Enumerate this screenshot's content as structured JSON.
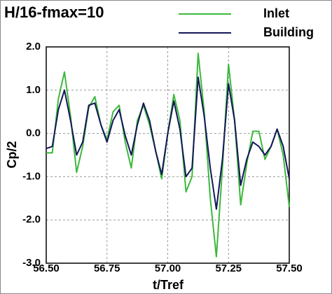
{
  "chart_data": {
    "type": "line",
    "title": "H/16-fmax=10",
    "x_label": "t/Tref",
    "y_label": "Cp/2",
    "x": [
      56.5,
      56.525,
      56.55,
      56.575,
      56.6,
      56.625,
      56.65,
      56.675,
      56.7,
      56.725,
      56.75,
      56.775,
      56.8,
      56.825,
      56.85,
      56.875,
      56.9,
      56.925,
      56.95,
      56.975,
      57.0,
      57.025,
      57.05,
      57.075,
      57.1,
      57.125,
      57.15,
      57.175,
      57.2,
      57.225,
      57.25,
      57.275,
      57.3,
      57.325,
      57.35,
      57.375,
      57.4,
      57.425,
      57.45,
      57.475,
      57.5
    ],
    "series": [
      {
        "name": "Inlet",
        "color": "#3cb83c",
        "values": [
          -0.45,
          -0.45,
          0.8,
          1.42,
          0.4,
          -0.9,
          -0.3,
          0.6,
          0.85,
          0.2,
          -0.15,
          0.5,
          0.65,
          -0.2,
          -0.8,
          0.3,
          0.65,
          0.2,
          -0.4,
          -1.05,
          0.0,
          0.9,
          0.3,
          -1.35,
          -1.0,
          1.85,
          0.5,
          -1.5,
          -2.85,
          -0.8,
          1.6,
          0.3,
          -1.65,
          -0.7,
          0.05,
          0.05,
          -0.6,
          -0.3,
          0.1,
          -0.5,
          -1.7
        ]
      },
      {
        "name": "Building",
        "color": "#14165a",
        "values": [
          -0.35,
          -0.3,
          0.55,
          1.0,
          0.3,
          -0.5,
          -0.2,
          0.65,
          0.7,
          0.2,
          -0.2,
          0.3,
          0.55,
          -0.05,
          -0.5,
          0.2,
          0.7,
          0.3,
          -0.4,
          -0.95,
          0.0,
          0.75,
          0.1,
          -1.0,
          -0.8,
          1.3,
          0.4,
          -0.8,
          -1.75,
          -0.6,
          1.15,
          0.3,
          -1.2,
          -0.6,
          -0.2,
          -0.3,
          -0.5,
          -0.3,
          0.1,
          -0.3,
          -1.05
        ]
      }
    ],
    "xlim": [
      56.5,
      57.5
    ],
    "xticks": [
      {
        "value": 56.5,
        "label": "56.50"
      },
      {
        "value": 56.75,
        "label": "56.75"
      },
      {
        "value": 57.0,
        "label": "57.00"
      },
      {
        "value": 57.25,
        "label": "57.25"
      },
      {
        "value": 57.5,
        "label": "57.50"
      }
    ],
    "ylim": [
      -3,
      2
    ],
    "yticks": [
      {
        "value": -3,
        "label": "-3.0"
      },
      {
        "value": -2,
        "label": "-2.0"
      },
      {
        "value": -1,
        "label": "-1.0"
      },
      {
        "value": 0,
        "label": "0.0"
      },
      {
        "value": 1,
        "label": "1.0"
      },
      {
        "value": 2,
        "label": "2.0"
      }
    ],
    "grid": true
  }
}
